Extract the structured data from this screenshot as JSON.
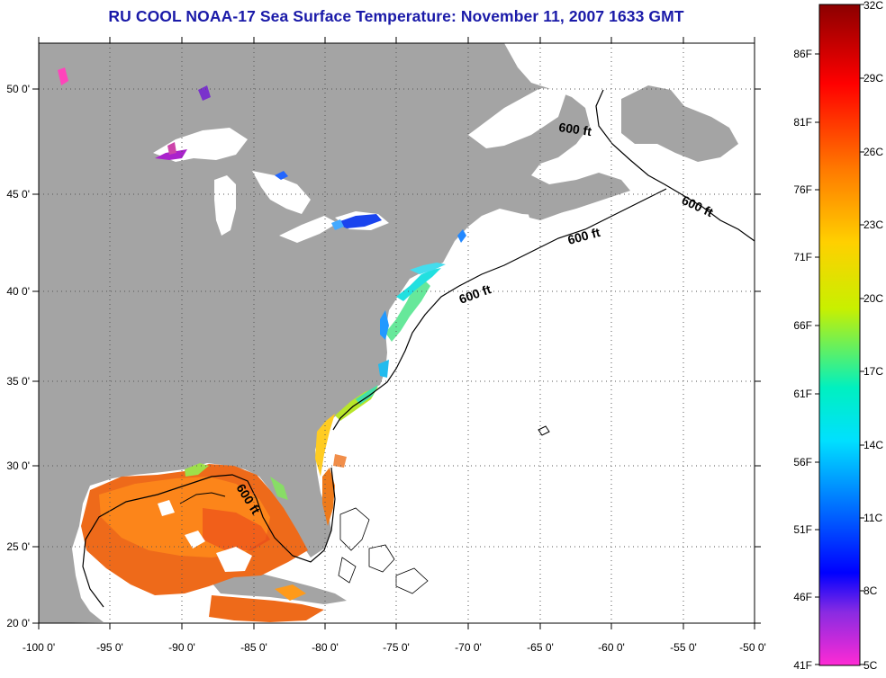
{
  "title": "RU COOL  NOAA-17  Sea Surface Temperature:  November 11, 2007 1633 GMT",
  "lat_ticks": [
    "50 0'",
    "45 0'",
    "40 0'",
    "35 0'",
    "30 0'",
    "25 0'",
    "20 0'"
  ],
  "lon_ticks": [
    "-100 0'",
    "-95 0'",
    "-90 0'",
    "-85 0'",
    "-80 0'",
    "-75 0'",
    "-70 0'",
    "-65 0'",
    "-60 0'",
    "-55 0'",
    "-50 0'"
  ],
  "contour_labels": [
    "600 ft",
    "600 ft",
    "600 ft",
    "600 ft",
    "600 ft"
  ],
  "colorbar": {
    "fahrenheit": [
      "86F",
      "81F",
      "76F",
      "71F",
      "66F",
      "61F",
      "56F",
      "51F",
      "46F",
      "41F"
    ],
    "celsius": [
      "32C",
      "29C",
      "26C",
      "23C",
      "20C",
      "17C",
      "14C",
      "11C",
      "8C",
      "5C"
    ],
    "gradient_colors": [
      "#8b0000",
      "#ff0000",
      "#ff8c00",
      "#ffd700",
      "#c8f000",
      "#00e0e0",
      "#0096ff",
      "#0000ff",
      "#7a1fc0",
      "#ff33cc"
    ]
  },
  "colors": {
    "land": "#a4a4a4",
    "water": "#ffffff",
    "title": "#1a1aa8"
  }
}
